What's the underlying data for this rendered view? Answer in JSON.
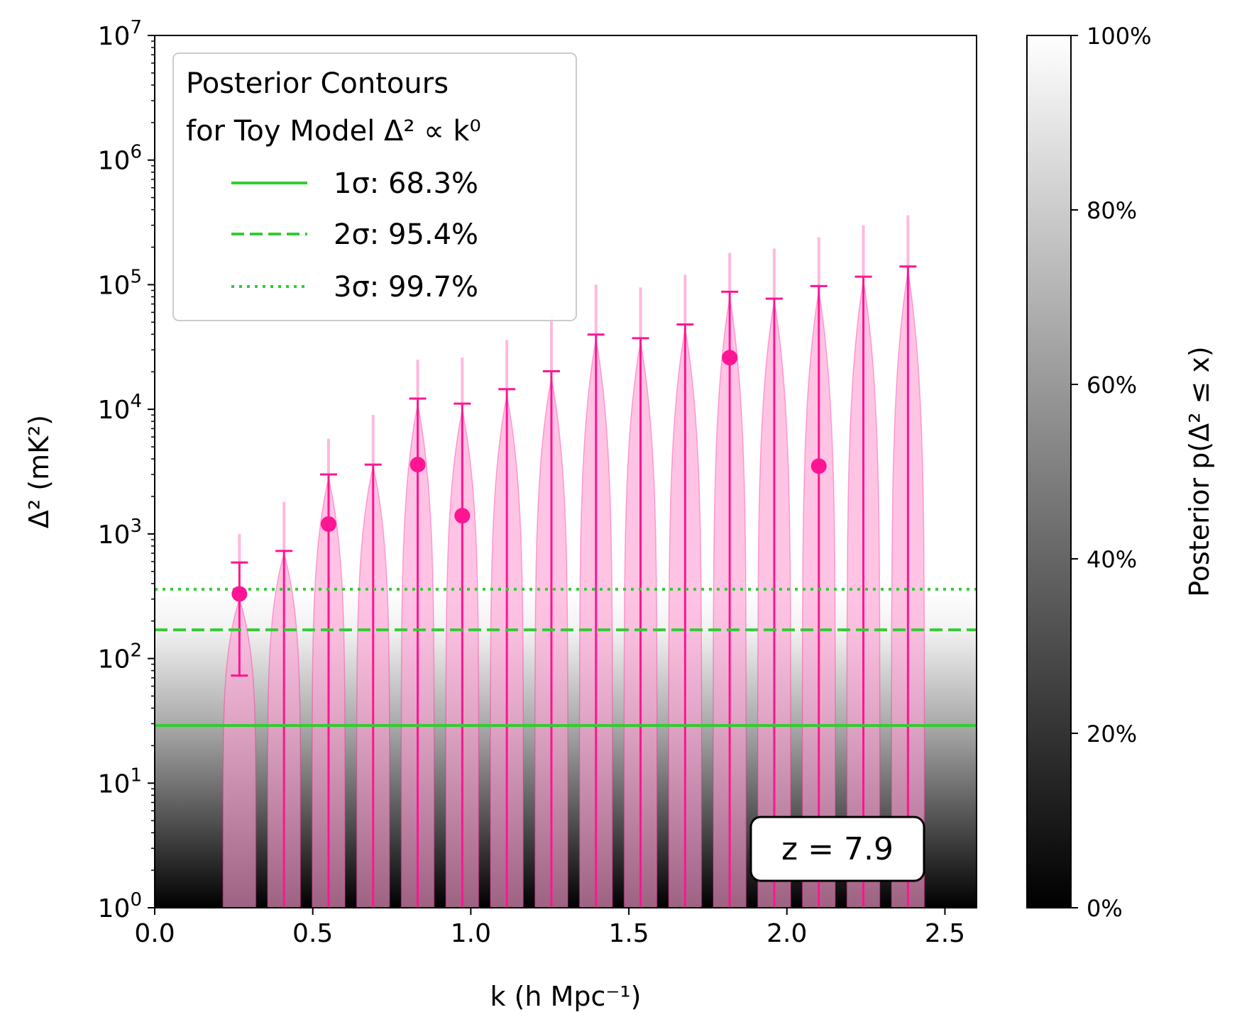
{
  "chart_data": {
    "type": "scatter",
    "annotation": "z = 7.9",
    "xaxis": {
      "label": "k (h Mpc⁻¹)",
      "range": [
        0.0,
        2.6
      ],
      "ticks": [
        0.0,
        0.5,
        1.0,
        1.5,
        2.0,
        2.5
      ],
      "tick_labels": [
        "0.0",
        "0.5",
        "1.0",
        "1.5",
        "2.0",
        "2.5"
      ]
    },
    "yaxis": {
      "label": "Δ² (mK²)",
      "scale": "log",
      "range": [
        1,
        10000000
      ],
      "ticks": [
        1,
        10,
        100,
        1000,
        10000,
        100000,
        1000000,
        10000000
      ],
      "tick_base": "10",
      "tick_exponents": [
        "0",
        "1",
        "2",
        "3",
        "4",
        "5",
        "6",
        "7"
      ]
    },
    "colorbar": {
      "label": "Posterior p(Δ² ≤ x)",
      "range": [
        0,
        100
      ],
      "ticks": [
        0,
        20,
        40,
        60,
        80,
        100
      ],
      "tick_labels": [
        "0%",
        "20%",
        "40%",
        "60%",
        "80%",
        "100%"
      ],
      "colormap": "gray"
    },
    "legend": {
      "title_line1": "Posterior Contours",
      "title_line2": "for Toy Model Δ² ∝ k⁰",
      "placement": "upper-left",
      "entries": [
        {
          "label": "1σ: 68.3%",
          "linestyle": "solid"
        },
        {
          "label": "2σ: 95.4%",
          "linestyle": "dashed"
        },
        {
          "label": "3σ: 99.7%",
          "linestyle": "dotted"
        }
      ]
    },
    "contour_lines": [
      {
        "name": "1σ: 68.3%",
        "y": 29,
        "style": "solid"
      },
      {
        "name": "2σ: 95.4%",
        "y": 170,
        "style": "dashed"
      },
      {
        "name": "3σ: 99.7%",
        "y": 360,
        "style": "dotted"
      }
    ],
    "k_bins": [
      0.268,
      0.409,
      0.55,
      0.691,
      0.832,
      0.973,
      1.114,
      1.255,
      1.396,
      1.537,
      1.678,
      1.819,
      1.96,
      2.101,
      2.242,
      2.383
    ],
    "violin_peak": [
      300,
      700,
      2800,
      3500,
      11000,
      10000,
      13000,
      18000,
      37000,
      35000,
      45000,
      80000,
      75000,
      90000,
      110000,
      130000
    ],
    "upper_errorbar": [
      590,
      730,
      3000,
      3600,
      12200,
      11100,
      14500,
      20200,
      39800,
      37200,
      48000,
      87800,
      77200,
      97500,
      116000,
      140000
    ],
    "violin_tail": [
      1000,
      1800,
      5800,
      9000,
      25000,
      26000,
      36000,
      60000,
      100000,
      95000,
      120000,
      180000,
      195000,
      240000,
      300000,
      360000
    ],
    "detections": [
      {
        "k": 0.268,
        "value": 330,
        "lower": 73
      },
      {
        "k": 0.55,
        "value": 1200
      },
      {
        "k": 0.832,
        "value": 3600
      },
      {
        "k": 0.973,
        "value": 1400
      },
      {
        "k": 1.819,
        "value": 26000
      },
      {
        "k": 2.101,
        "value": 3500
      }
    ],
    "colors": {
      "violin_fill": "#ff9fd4",
      "marker": "#ff1493",
      "contour": "#33cc33",
      "legend_border": "#cccccc"
    }
  }
}
